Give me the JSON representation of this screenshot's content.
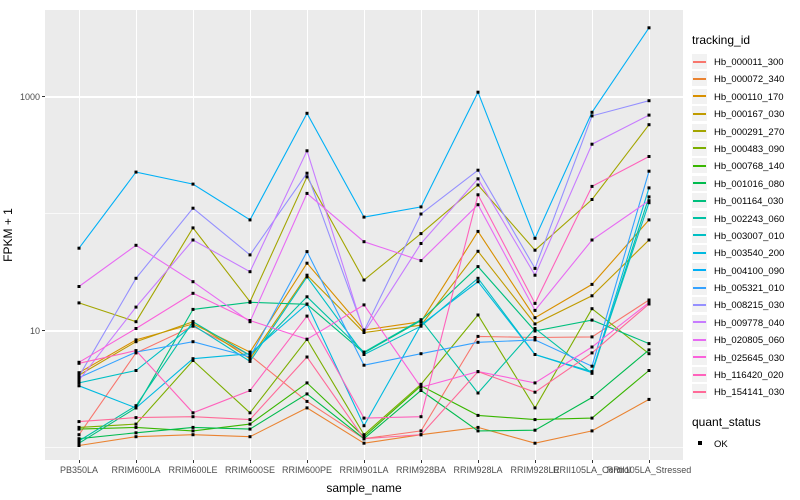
{
  "axes": {
    "y_title": "FPKM + 1",
    "x_title": "sample_name",
    "y_tick_labels": [
      "1000",
      "10"
    ]
  },
  "legend": {
    "tracking_title": "tracking_id",
    "quant_title": "quant_status",
    "quant_ok_label": "OK"
  },
  "colors": {
    "panel_background": "#EBEBEB",
    "gridline": "#FFFFFF",
    "legend_key_background": "#F2F2F2",
    "axis_text": "#4D4D4D",
    "point": "#000000"
  },
  "chart_data": {
    "type": "line",
    "title": "",
    "xlabel": "sample_name",
    "ylabel": "FPKM + 1",
    "y_scale": "log10",
    "y_ticks": [
      10,
      1000
    ],
    "y_minor_gridlines": [
      1,
      100
    ],
    "ylim": [
      0.79,
      5500
    ],
    "grid": true,
    "legend_position": "right",
    "point_marker": "small-black-square",
    "quant_status": "OK",
    "categories": [
      "PB350LA",
      "RRIM600LA",
      "RRIM600LE",
      "RRIM600SE",
      "RRIM600PE",
      "RRIM901LA",
      "RRIM928BA",
      "RRIM928LA",
      "RRIM928LE",
      "RRII105LA_Control",
      "RRII105LA_Stressed"
    ],
    "series": [
      {
        "name": "Hb_000011_300",
        "color": "#F8766D",
        "values": [
          1.3,
          6.5,
          11,
          6.2,
          2.5,
          1.2,
          1.4,
          9.0,
          8.8,
          8.9,
          18.4
        ]
      },
      {
        "name": "Hb_000072_340",
        "color": "#EA8331",
        "values": [
          1.05,
          1.25,
          1.3,
          1.25,
          2.2,
          1.1,
          1.3,
          1.5,
          1.1,
          1.4,
          2.6
        ]
      },
      {
        "name": "Hb_000110_170",
        "color": "#D89000",
        "values": [
          4.4,
          8.4,
          11.5,
          6.6,
          38,
          10.2,
          12,
          71,
          13,
          25,
          89
        ]
      },
      {
        "name": "Hb_000167_030",
        "color": "#C09B00",
        "values": [
          4.2,
          8.1,
          12,
          5.8,
          30,
          9.7,
          11.2,
          48,
          11.5,
          20,
          60
        ]
      },
      {
        "name": "Hb_000291_270",
        "color": "#A3A500",
        "values": [
          17.4,
          12,
          76,
          17.8,
          208,
          27.3,
          68,
          177,
          49,
          133,
          580
        ]
      },
      {
        "name": "Hb_000483_090",
        "color": "#7CAE00",
        "values": [
          1.5,
          1.6,
          5.6,
          2.0,
          8.5,
          1.3,
          3.5,
          13.7,
          2.2,
          15.5,
          6.4
        ]
      },
      {
        "name": "Hb_000768_140",
        "color": "#39B600",
        "values": [
          1.45,
          1.5,
          1.4,
          1.6,
          3.6,
          1.25,
          3.4,
          1.9,
          1.75,
          1.8,
          4.6
        ]
      },
      {
        "name": "Hb_001016_080",
        "color": "#00BB4E",
        "values": [
          1.2,
          1.35,
          1.5,
          1.45,
          2.9,
          1.2,
          3.1,
          1.4,
          1.42,
          2.7,
          6.9
        ]
      },
      {
        "name": "Hb_001164_030",
        "color": "#00BF7D",
        "values": [
          1.1,
          2.2,
          15.3,
          17.6,
          16.9,
          6.5,
          12.3,
          35.5,
          10,
          12.4,
          7.8
        ]
      },
      {
        "name": "Hb_002243_060",
        "color": "#00C1A3",
        "values": [
          1.15,
          2.3,
          12,
          6.2,
          19.6,
          6.6,
          12.5,
          2.95,
          10.5,
          4.35,
          140
        ]
      },
      {
        "name": "Hb_003007_010",
        "color": "#00BFC4",
        "values": [
          3.6,
          4.6,
          11.2,
          5.5,
          29,
          6.3,
          11,
          28.2,
          6.3,
          4.5,
          125
        ]
      },
      {
        "name": "Hb_003540_200",
        "color": "#00BAE0",
        "values": [
          3.4,
          2.2,
          5.8,
          6.4,
          17,
          1.55,
          11.3,
          26.4,
          6.3,
          4.4,
          167
        ]
      },
      {
        "name": "Hb_004100_090",
        "color": "#00B0F6",
        "values": [
          51,
          228,
          180,
          89,
          725,
          94,
          115,
          1100,
          62,
          740,
          3900
        ]
      },
      {
        "name": "Hb_005321_010",
        "color": "#35A2FF",
        "values": [
          4.0,
          6.6,
          8.1,
          6.0,
          47.7,
          5.1,
          6.4,
          8.0,
          8.4,
          5.0,
          232
        ]
      },
      {
        "name": "Hb_008215_030",
        "color": "#9590FF",
        "values": [
          4.1,
          28.2,
          112,
          44.7,
          223,
          10,
          100,
          237,
          34.3,
          690,
          930
        ]
      },
      {
        "name": "Hb_009778_040",
        "color": "#C77CFF",
        "values": [
          3.8,
          16,
          60,
          32.1,
          347,
          9.7,
          56,
          200,
          30,
          395,
          700
        ]
      },
      {
        "name": "Hb_020805_060",
        "color": "#E76BF3",
        "values": [
          24,
          54,
          26.4,
          12,
          150,
          58,
          40,
          120,
          15,
          60,
          130
        ]
      },
      {
        "name": "Hb_025645_030",
        "color": "#FA62DB",
        "values": [
          5.4,
          10.5,
          21,
          12.3,
          8.5,
          16.7,
          3.3,
          4.5,
          3.6,
          7.3,
          17.5
        ]
      },
      {
        "name": "Hb_116420_020",
        "color": "#FF62BC",
        "values": [
          5.3,
          6.8,
          2.0,
          3.1,
          13.4,
          1.8,
          1.85,
          146,
          17.2,
          172,
          310
        ]
      },
      {
        "name": "Hb_154141_030",
        "color": "#FF6A98",
        "values": [
          1.68,
          1.82,
          1.85,
          1.75,
          6.0,
          1.2,
          1.3,
          4.5,
          3.0,
          6.5,
          17
        ]
      }
    ]
  }
}
